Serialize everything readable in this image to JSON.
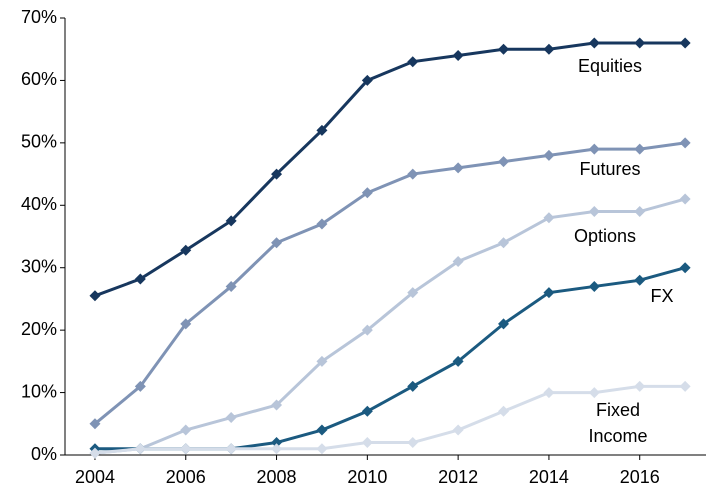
{
  "chart_data": {
    "type": "line",
    "x": [
      2004,
      2005,
      2006,
      2007,
      2008,
      2009,
      2010,
      2011,
      2012,
      2013,
      2014,
      2015,
      2016,
      2017
    ],
    "series": [
      {
        "name": "Equities",
        "color": "#17375e",
        "values": [
          25.5,
          28.2,
          32.8,
          37.5,
          45,
          52,
          60,
          63,
          64,
          65,
          65,
          66,
          66,
          66
        ]
      },
      {
        "name": "Futures",
        "color": "#7f93b5",
        "values": [
          5,
          11,
          21,
          27,
          34,
          37,
          42,
          45,
          46,
          47,
          48,
          49,
          49,
          50
        ]
      },
      {
        "name": "Options",
        "color": "#b8c5d9",
        "values": [
          0.3,
          1,
          4,
          6,
          8,
          15,
          20,
          26,
          31,
          34,
          38,
          39,
          39,
          41
        ]
      },
      {
        "name": "FX",
        "color": "#1b5a80",
        "values": [
          1,
          1,
          1,
          1,
          2,
          4,
          7,
          11,
          15,
          21,
          26,
          27,
          28,
          30
        ]
      },
      {
        "name": "Fixed Income",
        "color": "#d5dde9",
        "values": [
          0.3,
          1,
          1,
          1,
          1,
          1,
          2,
          2,
          4,
          7,
          10,
          10,
          11,
          11
        ]
      }
    ],
    "xlim": [
      2003.34,
      2017.46
    ],
    "xticks": [
      2004,
      2006,
      2008,
      2010,
      2012,
      2014,
      2016
    ],
    "ylim": [
      0,
      70
    ],
    "yticks": [
      {
        "value": 0,
        "label": "0%"
      },
      {
        "value": 10,
        "label": "10%"
      },
      {
        "value": 20,
        "label": "20%"
      },
      {
        "value": 30,
        "label": "30%"
      },
      {
        "value": 40,
        "label": "40%"
      },
      {
        "value": 50,
        "label": "50%"
      },
      {
        "value": 60,
        "label": "60%"
      },
      {
        "value": 70,
        "label": "70%"
      }
    ],
    "grid": false
  }
}
